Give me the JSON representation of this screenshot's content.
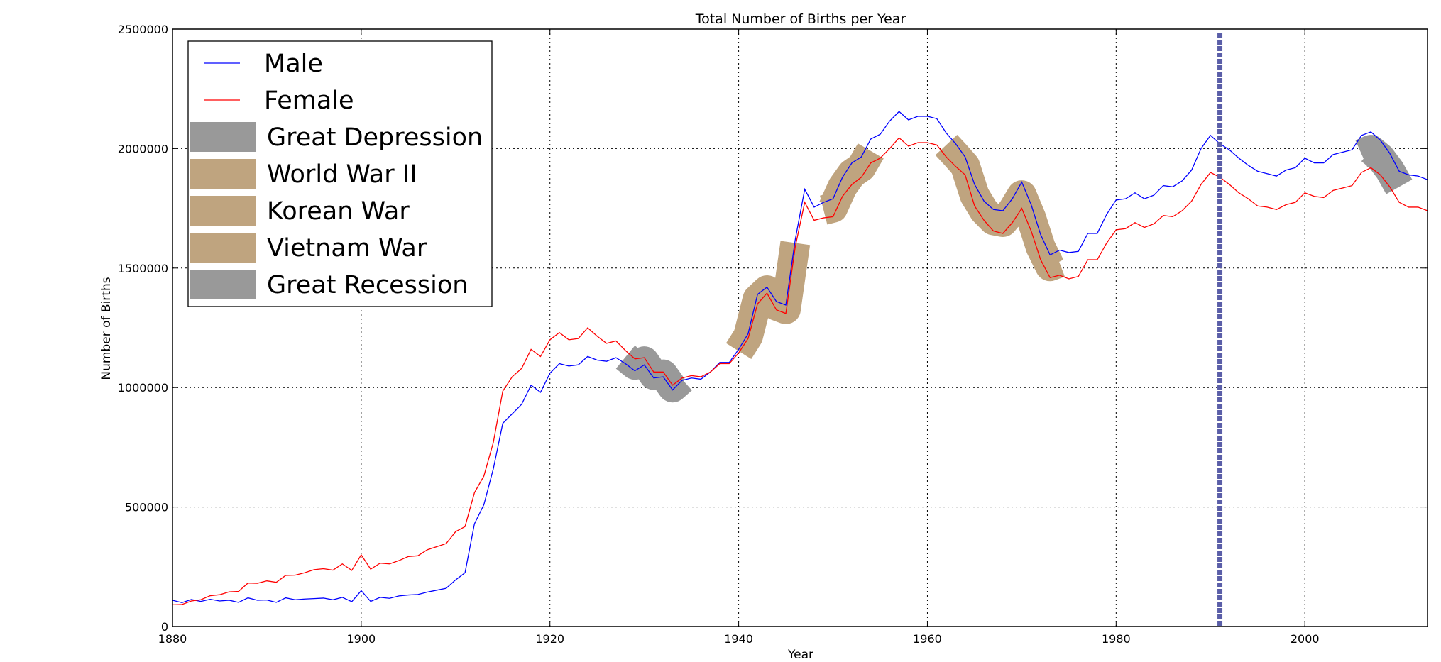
{
  "chart_data": {
    "type": "line",
    "title": "Total Number of Births per Year",
    "xlabel": "Year",
    "ylabel": "Number of Births",
    "xlim": [
      1880,
      2013
    ],
    "ylim": [
      0,
      2500000
    ],
    "xticks": [
      1880,
      1900,
      1920,
      1940,
      1960,
      1980,
      2000
    ],
    "yticks": [
      0,
      500000,
      1000000,
      1500000,
      2000000,
      2500000
    ],
    "grid": true,
    "legend_position": "upper-left",
    "x": [
      1880,
      1881,
      1882,
      1883,
      1884,
      1885,
      1886,
      1887,
      1888,
      1889,
      1890,
      1891,
      1892,
      1893,
      1894,
      1895,
      1896,
      1897,
      1898,
      1899,
      1900,
      1901,
      1902,
      1903,
      1904,
      1905,
      1906,
      1907,
      1908,
      1909,
      1910,
      1911,
      1912,
      1913,
      1914,
      1915,
      1916,
      1917,
      1918,
      1919,
      1920,
      1921,
      1922,
      1923,
      1924,
      1925,
      1926,
      1927,
      1928,
      1929,
      1930,
      1931,
      1932,
      1933,
      1934,
      1935,
      1936,
      1937,
      1938,
      1939,
      1940,
      1941,
      1942,
      1943,
      1944,
      1945,
      1946,
      1947,
      1948,
      1949,
      1950,
      1951,
      1952,
      1953,
      1954,
      1955,
      1956,
      1957,
      1958,
      1959,
      1960,
      1961,
      1962,
      1963,
      1964,
      1965,
      1966,
      1967,
      1968,
      1969,
      1970,
      1971,
      1972,
      1973,
      1974,
      1975,
      1976,
      1977,
      1978,
      1979,
      1980,
      1981,
      1982,
      1983,
      1984,
      1985,
      1986,
      1987,
      1988,
      1989,
      1990,
      1991,
      1992,
      1993,
      1994,
      1995,
      1996,
      1997,
      1998,
      1999,
      2000,
      2001,
      2002,
      2003,
      2004,
      2005,
      2006,
      2007,
      2008,
      2009,
      2010,
      2011,
      2012,
      2013
    ],
    "series": [
      {
        "name": "Male",
        "color": "#0000ff",
        "values": [
          110000,
          100000,
          113000,
          105000,
          114000,
          107000,
          110000,
          101000,
          120000,
          110000,
          111000,
          101000,
          120000,
          112000,
          115000,
          117000,
          119000,
          112000,
          122000,
          104000,
          150000,
          105000,
          122000,
          118000,
          128000,
          132000,
          134000,
          144000,
          152000,
          160000,
          195000,
          225000,
          430000,
          510000,
          660000,
          850000,
          890000,
          930000,
          1010000,
          980000,
          1060000,
          1100000,
          1090000,
          1095000,
          1130000,
          1115000,
          1110000,
          1125000,
          1100000,
          1070000,
          1095000,
          1040000,
          1045000,
          990000,
          1030000,
          1040000,
          1035000,
          1065000,
          1105000,
          1105000,
          1160000,
          1225000,
          1390000,
          1420000,
          1360000,
          1345000,
          1620000,
          1830000,
          1755000,
          1775000,
          1790000,
          1880000,
          1940000,
          1965000,
          2040000,
          2060000,
          2115000,
          2155000,
          2120000,
          2135000,
          2135000,
          2125000,
          2065000,
          2020000,
          1965000,
          1850000,
          1780000,
          1745000,
          1740000,
          1790000,
          1860000,
          1765000,
          1640000,
          1555000,
          1575000,
          1565000,
          1570000,
          1645000,
          1645000,
          1725000,
          1785000,
          1790000,
          1815000,
          1790000,
          1805000,
          1845000,
          1840000,
          1865000,
          1910000,
          2000000,
          2055000,
          2020000,
          1995000,
          1960000,
          1930000,
          1905000,
          1895000,
          1885000,
          1910000,
          1920000,
          1960000,
          1940000,
          1940000,
          1975000,
          1985000,
          1995000,
          2055000,
          2070000,
          2035000,
          1980000,
          1905000,
          1890000,
          1885000,
          1870000
        ]
      },
      {
        "name": "Female",
        "color": "#ff0000",
        "values": [
          91000,
          92000,
          107000,
          112000,
          129000,
          133000,
          145000,
          147000,
          182000,
          181000,
          191000,
          185000,
          214000,
          215000,
          225000,
          238000,
          242000,
          236000,
          262000,
          235000,
          300000,
          240000,
          265000,
          262000,
          276000,
          293000,
          296000,
          321000,
          334000,
          347000,
          397000,
          418000,
          560000,
          630000,
          770000,
          985000,
          1045000,
          1080000,
          1160000,
          1130000,
          1200000,
          1230000,
          1200000,
          1205000,
          1250000,
          1215000,
          1185000,
          1195000,
          1155000,
          1120000,
          1125000,
          1065000,
          1065000,
          1010000,
          1040000,
          1050000,
          1045000,
          1065000,
          1100000,
          1100000,
          1145000,
          1205000,
          1350000,
          1395000,
          1325000,
          1310000,
          1590000,
          1775000,
          1700000,
          1710000,
          1715000,
          1800000,
          1850000,
          1880000,
          1940000,
          1960000,
          2000000,
          2045000,
          2010000,
          2025000,
          2025000,
          2015000,
          1965000,
          1925000,
          1890000,
          1760000,
          1700000,
          1655000,
          1645000,
          1690000,
          1750000,
          1655000,
          1535000,
          1460000,
          1470000,
          1455000,
          1465000,
          1535000,
          1535000,
          1605000,
          1660000,
          1665000,
          1690000,
          1670000,
          1685000,
          1720000,
          1715000,
          1740000,
          1780000,
          1850000,
          1900000,
          1880000,
          1850000,
          1815000,
          1790000,
          1760000,
          1755000,
          1745000,
          1765000,
          1775000,
          1815000,
          1800000,
          1795000,
          1825000,
          1835000,
          1845000,
          1900000,
          1920000,
          1890000,
          1840000,
          1775000,
          1755000,
          1755000,
          1740000
        ]
      }
    ],
    "highlights": [
      {
        "label": "Great Depression",
        "start": 1929,
        "end": 1933,
        "color": "#999999"
      },
      {
        "label": "World War II",
        "start": 1941,
        "end": 1945,
        "color": "#bfa47f"
      },
      {
        "label": "Korean War",
        "start": 1950,
        "end": 1953,
        "color": "#bfa47f"
      },
      {
        "label": "Vietnam War",
        "start": 1963,
        "end": 1973,
        "color": "#bfa47f"
      },
      {
        "label": "Great Recession",
        "start": 2007,
        "end": 2009,
        "color": "#999999"
      }
    ],
    "vertical_line": {
      "x": 1991,
      "color": "#5a5ea8",
      "style": "dotted"
    }
  }
}
